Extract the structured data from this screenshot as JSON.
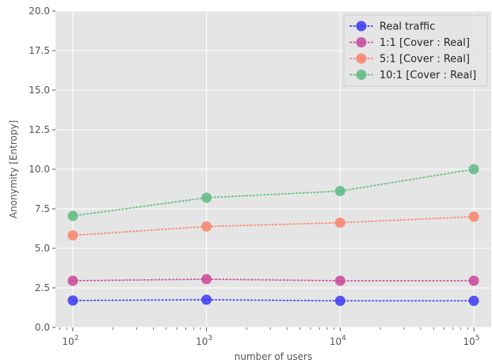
{
  "chart_data": {
    "type": "line",
    "xscale": "log",
    "x": [
      100,
      1000,
      10000,
      100000
    ],
    "x_tick_labels": [
      {
        "value": 100,
        "base": "10",
        "exp": "2"
      },
      {
        "value": 1000,
        "base": "10",
        "exp": "3"
      },
      {
        "value": 10000,
        "base": "10",
        "exp": "4"
      },
      {
        "value": 100000,
        "base": "10",
        "exp": "5"
      }
    ],
    "xlabel": "number of users",
    "ylabel": "Anonymity [Entropy]",
    "ylim": [
      0,
      20
    ],
    "y_ticks": [
      "0.0",
      "2.5",
      "5.0",
      "7.5",
      "10.0",
      "12.5",
      "15.0",
      "17.5",
      "20.0"
    ],
    "grid": true,
    "legend_position": "top-right",
    "series": [
      {
        "name": "Real traffic",
        "color": "#3a3af2",
        "values": [
          1.7,
          1.75,
          1.68,
          1.68
        ]
      },
      {
        "name": "1:1 [Cover : Real]",
        "color": "#c9479a",
        "values": [
          2.95,
          3.05,
          2.95,
          2.95
        ]
      },
      {
        "name": "5:1 [Cover : Real]",
        "color": "#f8836b",
        "values": [
          5.82,
          6.38,
          6.62,
          7.0
        ]
      },
      {
        "name": "10:1 [Cover : Real]",
        "color": "#5cba84",
        "values": [
          7.05,
          8.2,
          8.62,
          10.0
        ]
      }
    ]
  }
}
